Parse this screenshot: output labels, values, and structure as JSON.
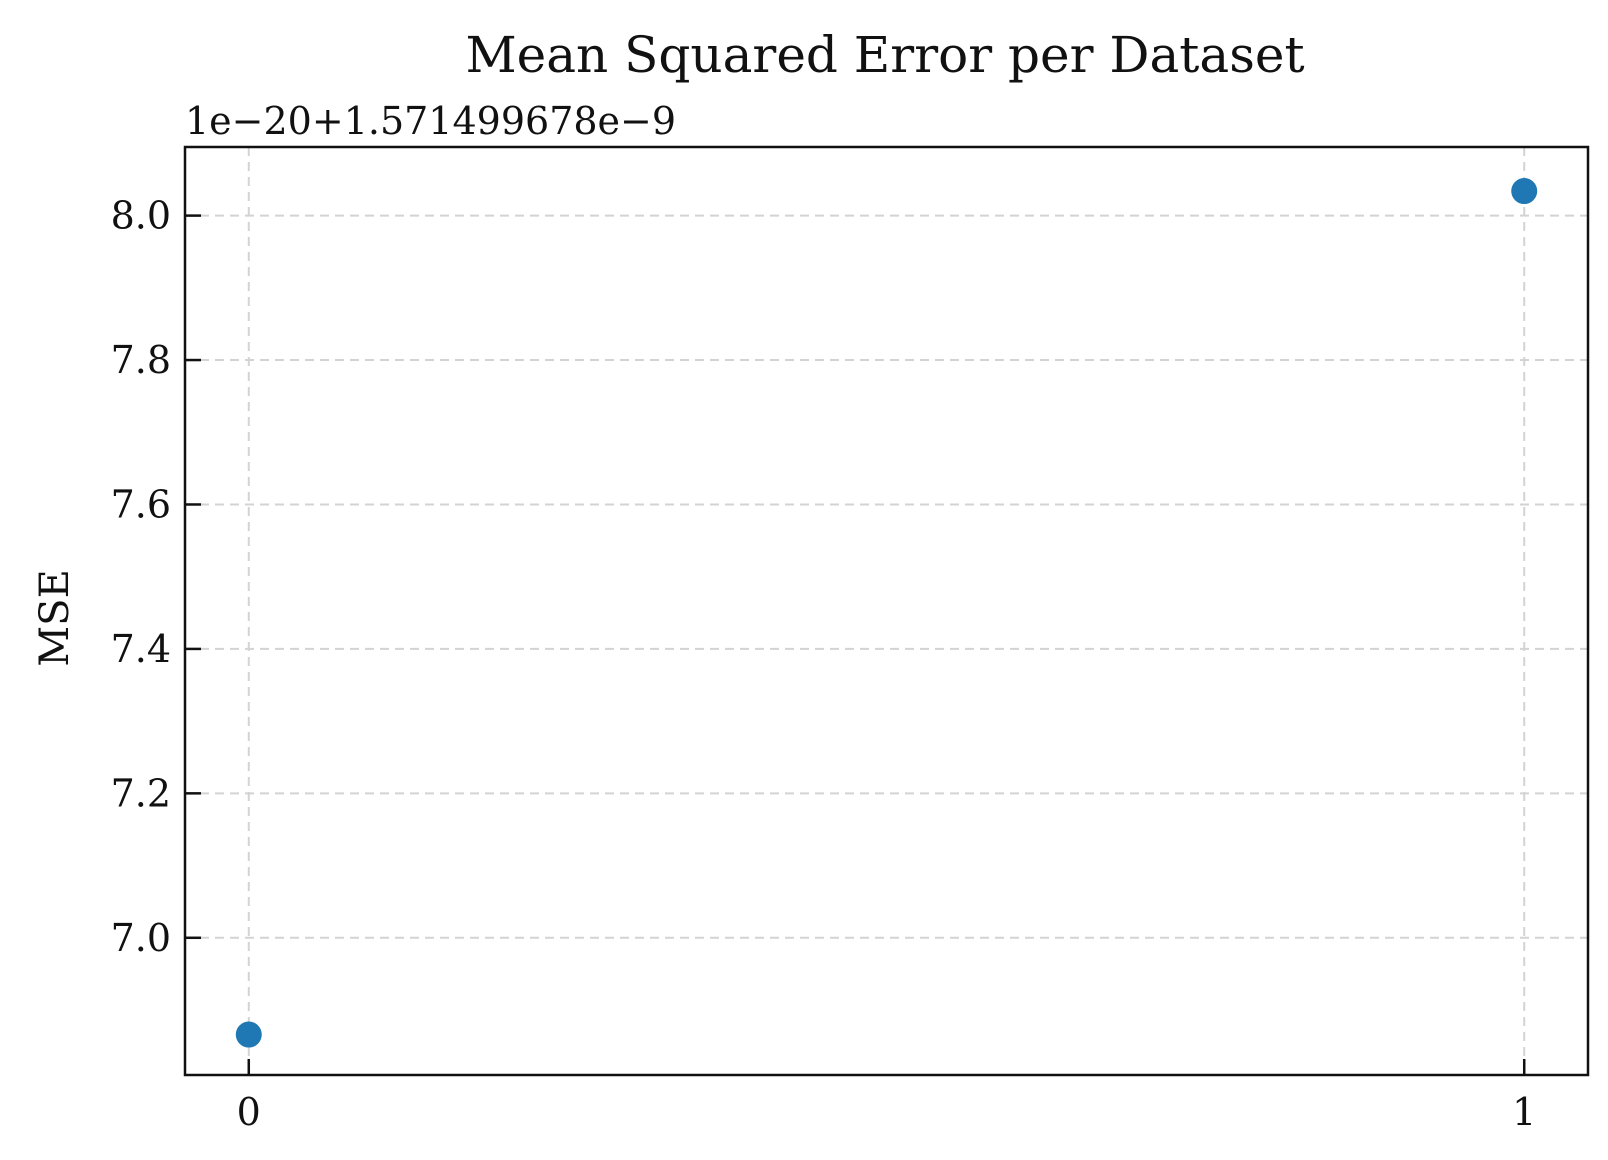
{
  "chart_data": {
    "type": "scatter",
    "title": "Mean Squared Error per Dataset",
    "xlabel": "",
    "ylabel": "MSE",
    "y_offset_label": "1e−20+1.571499678e−9",
    "x_ticks": [
      0,
      1
    ],
    "x_tick_labels": [
      "0",
      "1"
    ],
    "y_ticks": [
      7.0,
      7.2,
      7.4,
      7.6,
      7.8,
      8.0
    ],
    "y_tick_labels": [
      "7.0",
      "7.2",
      "7.4",
      "7.6",
      "7.8",
      "8.0"
    ],
    "xlim": [
      -0.05,
      1.05
    ],
    "ylim": [
      6.81,
      8.095
    ],
    "grid": true,
    "series": [
      {
        "x": [
          0,
          1
        ],
        "y": [
          6.866,
          8.034
        ],
        "color": "#1f77b4"
      }
    ]
  }
}
